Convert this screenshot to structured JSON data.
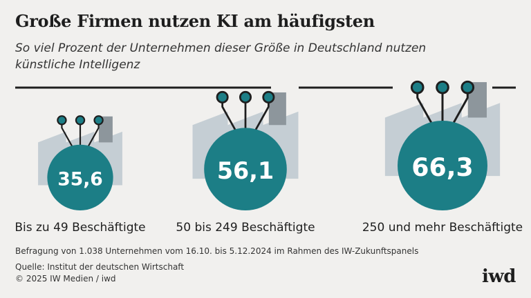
{
  "chart_data": {
    "type": "bubble",
    "title": "Große Firmen nutzen KI am häufigsten",
    "subtitle": "So viel Prozent der Unternehmen dieser Größe in Deutschland nutzen künstliche Intelligenz",
    "categories": [
      "Bis zu 49 Beschäftigte",
      "50 bis 249 Beschäftigte",
      "250 und mehr Beschäftigte"
    ],
    "values": [
      35.6,
      56.1,
      66.3
    ],
    "value_labels": [
      "35,6",
      "56,1",
      "66,3"
    ],
    "unit": "Prozent",
    "legend": "none",
    "grid": false
  },
  "footnote": "Befragung von 1.038 Unternehmen vom 16.10. bis 5.12.2024 im Rahmen des IW-Zukunftspanels",
  "source": "Quelle: Institut der deutschen Wirtschaft",
  "copyright": "© 2025 IW Medien / iwd",
  "brand": "iwd",
  "colors": {
    "circle": "#1c7e86",
    "factory": "#c5ced4",
    "chimney": "#8d969c",
    "text": "#1e1e1e",
    "background": "#f1f0ee"
  }
}
